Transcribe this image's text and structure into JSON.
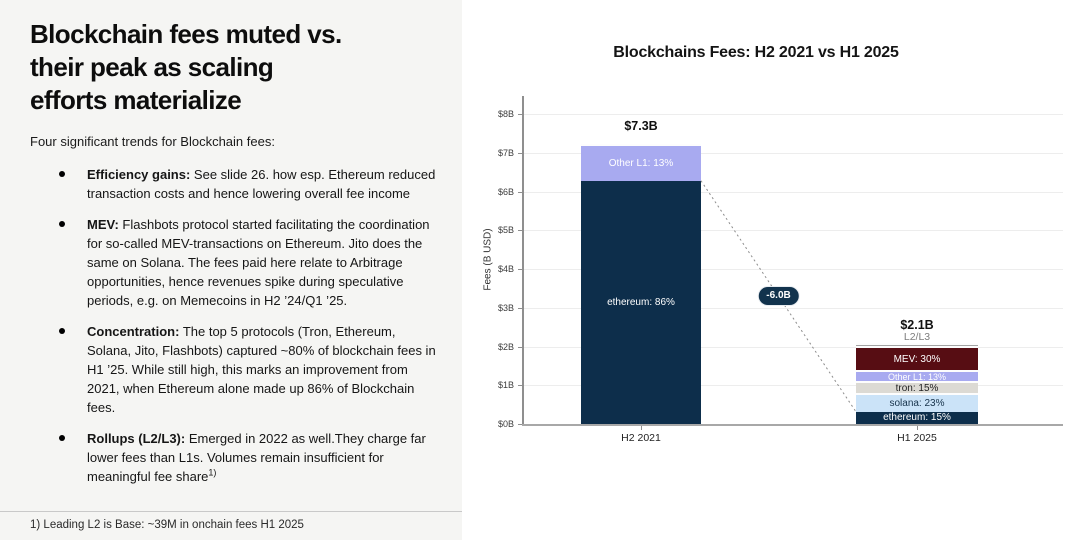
{
  "left_panel": {
    "title_lines": [
      "Blockchain fees muted vs.",
      "their peak as scaling",
      "efforts materialize"
    ],
    "intro": "Four significant trends for Blockchain fees:",
    "bullets": [
      {
        "lead": "Efficiency gains:",
        "text": " See slide 26. how esp. Ethereum reduced transaction costs and hence lowering overall fee income",
        "sup": ""
      },
      {
        "lead": "MEV:",
        "text": " Flashbots protocol started facilitating the coordination for so-called MEV-transactions on Ethereum. Jito does the same on Solana. The fees paid here relate to Arbitrage opportunities, hence revenues spike during speculative periods, e.g. on Memecoins in H2 ’24/Q1 ’25.",
        "sup": ""
      },
      {
        "lead": "Concentration:",
        "text": " The top 5 protocols (Tron, Ethereum, Solana, Jito, Flashbots) captured ~80% of blockchain fees in H1 ’25. While still high, this marks an improvement from 2021, when Ethereum alone made up 86% of Blockchain fees.",
        "sup": ""
      },
      {
        "lead": "Rollups (L2/L3):",
        "text": " Emerged in 2022 as well.They charge far lower fees than L1s. Volumes remain insufficient for meaningful fee share",
        "sup": "1)"
      }
    ],
    "footnote": "1) Leading L2 is Base: ~39M in onchain fees H1 2025"
  },
  "chart_data": {
    "type": "bar",
    "stacked": true,
    "title": "Blockchains Fees: H2 2021 vs H1 2025",
    "ylabel": "Fees (B USD)",
    "ylim": [
      0,
      8.5
    ],
    "yticks": [
      0,
      1,
      2,
      3,
      4,
      5,
      6,
      7,
      8
    ],
    "ytick_prefix": "$",
    "ytick_suffix": "B",
    "grid": "horizontal",
    "legend_position": "none",
    "categories": [
      "H2 2021",
      "H1 2025"
    ],
    "bars": [
      {
        "category": "H2 2021",
        "total_value": 7.3,
        "total_label": "$7.3B",
        "above_label": "",
        "segments": [
          {
            "name": "ethereum",
            "label": "ethereum: 86%",
            "pct": 86,
            "value": 6.3,
            "color": "#0d2e4b",
            "text_color": "#ffffff"
          },
          {
            "name": "other-l1",
            "label": "Other L1: 13%",
            "pct": 13,
            "value": 0.9,
            "color": "#a8aaf0",
            "text_color": "#ffffff"
          }
        ]
      },
      {
        "category": "H1 2025",
        "total_value": 2.1,
        "total_label": "$2.1B",
        "above_label": "L2/L3",
        "segments": [
          {
            "name": "ethereum",
            "label": "ethereum: 15%",
            "pct": 15,
            "value": 0.3,
            "color": "#0d2e4b",
            "text_color": "#ffffff"
          },
          {
            "name": "solana",
            "label": "solana: 23%",
            "pct": 23,
            "value": 0.5,
            "color": "#cbe3f8",
            "text_color": "#16324a"
          },
          {
            "name": "tron",
            "label": "tron: 15%",
            "pct": 15,
            "value": 0.3,
            "color": "#dcdad4",
            "text_color": "#222222"
          },
          {
            "name": "other-l1",
            "label": "Other L1: 13%",
            "pct": 13,
            "value": 0.3,
            "color": "#a8aaf0",
            "text_color": "#ffffff"
          },
          {
            "name": "mev",
            "label": "MEV: 30%",
            "pct": 30,
            "value": 0.6,
            "color": "#570d13",
            "text_color": "#ffffff"
          },
          {
            "name": "l2-l3",
            "label": "",
            "pct": 4,
            "value": 0.08,
            "color": "#a3a3a3",
            "text_color": "#666666"
          }
        ]
      }
    ],
    "annotation": {
      "label": "-6.0B",
      "description": "dotted connector between ethereum segment tops",
      "badge_color": "#12334d",
      "badge_text_color": "#ffffff"
    }
  }
}
